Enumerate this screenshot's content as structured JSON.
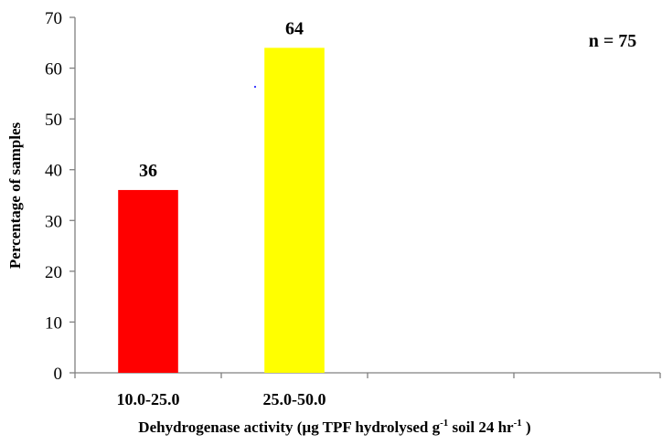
{
  "chart_data": {
    "type": "bar",
    "categories": [
      "10.0-25.0",
      "25.0-50.0",
      "",
      ""
    ],
    "values": [
      36,
      64,
      null,
      null
    ],
    "data_labels": [
      "36",
      "64",
      "",
      ""
    ],
    "colors": [
      "#ff0000",
      "#ffff00"
    ],
    "ylim": [
      0,
      70
    ],
    "yticks": [
      0,
      10,
      20,
      30,
      40,
      50,
      60,
      70
    ],
    "ylabel": "Percentage of samples",
    "xlabel": {
      "prefix": "Dehydrogenase activity (µg TPF hydrolysed g",
      "sup1": "-1",
      "middle": " soil 24 hr",
      "sup2": "-1",
      "suffix": " )"
    },
    "annotation": "n = 75",
    "grid": false,
    "legend": "none"
  }
}
